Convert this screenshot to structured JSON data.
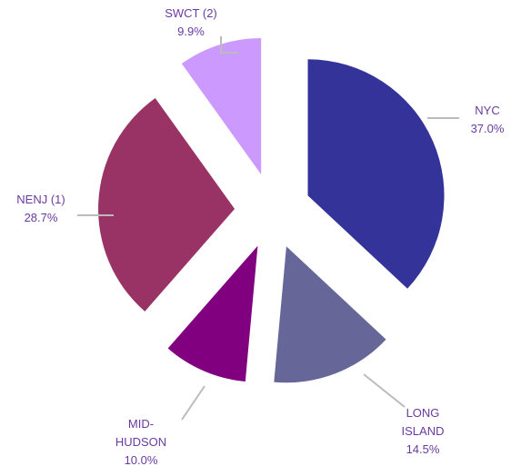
{
  "chart_data": {
    "type": "pie",
    "categories": [
      "NYC",
      "LONG ISLAND",
      "MID-HUDSON",
      "NENJ (1)",
      "SWCT (2)"
    ],
    "values": [
      37.0,
      14.5,
      10.0,
      28.7,
      9.9
    ],
    "value_labels": [
      "37.0%",
      "14.5%",
      "10.0%",
      "28.7%",
      "9.9%"
    ],
    "colors": [
      "#333399",
      "#666699",
      "#800080",
      "#993366",
      "#cc99ff"
    ]
  }
}
